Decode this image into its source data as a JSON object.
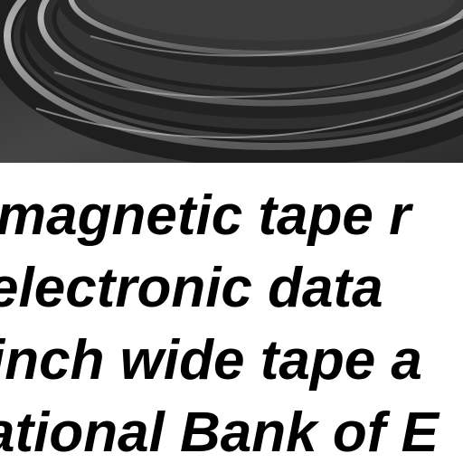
{
  "photo": {
    "subject": "magnetic tape reels",
    "colors": {
      "background": "#3a3a3a",
      "reel_rim": "#9a9a9a",
      "reel_shadow": "#1e1e1e",
      "reel_highlight": "#c8c8c8"
    }
  },
  "caption": {
    "lines": [
      "magnetic tape r",
      "electronic data",
      "inch wide tape a",
      "ational Bank of E"
    ],
    "text_color": "#000000"
  }
}
